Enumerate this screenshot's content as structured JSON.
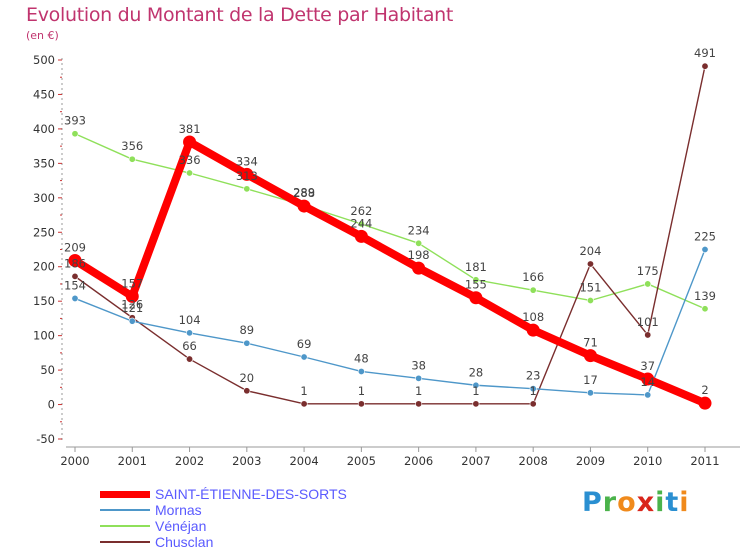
{
  "title": "Evolution du Montant de la Dette par Habitant",
  "unit": "(en €)",
  "logo": {
    "letters": [
      "P",
      "r",
      "o",
      "x",
      "i",
      "t",
      "i"
    ],
    "colors": [
      "#2a8fd1",
      "#4bb34b",
      "#f08a1c",
      "#d9261c",
      "#4bb34b",
      "#2a8fd1",
      "#f08a1c"
    ]
  },
  "chart_data": {
    "type": "line",
    "x": [
      "2000",
      "2001",
      "2002",
      "2003",
      "2004",
      "2005",
      "2006",
      "2007",
      "2008",
      "2009",
      "2010",
      "2011"
    ],
    "ylim": [
      -50,
      500
    ],
    "yticks": [
      "-50",
      "0",
      "50",
      "100",
      "150",
      "200",
      "250",
      "300",
      "350",
      "400",
      "450",
      "500"
    ],
    "grid": false,
    "legend_position": "bottom-left",
    "series": [
      {
        "name": "SAINT-ÉTIENNE-DES-SORTS",
        "color": "#ff0000",
        "values": [
          209,
          157,
          381,
          334,
          288,
          244,
          198,
          155,
          108,
          71,
          37,
          2
        ],
        "labels": [
          "209",
          "157",
          "381",
          "334",
          "288",
          "244",
          "198",
          "155",
          "108",
          "71",
          "37",
          "2"
        ]
      },
      {
        "name": "Mornas",
        "color": "#4e97c9",
        "values": [
          154,
          121,
          104,
          89,
          69,
          48,
          38,
          28,
          23,
          17,
          14,
          225
        ],
        "labels": [
          "154",
          "121",
          "104",
          "89",
          "69",
          "48",
          "38",
          "28",
          "23",
          "17",
          "14",
          "225"
        ]
      },
      {
        "name": "Vénéjan",
        "color": "#8fe05a",
        "values": [
          393,
          356,
          336,
          313,
          289,
          262,
          234,
          181,
          166,
          151,
          175,
          139
        ],
        "labels": [
          "393",
          "356",
          "336",
          "313",
          "289",
          "262",
          "234",
          "181",
          "166",
          "151",
          "175",
          "139"
        ]
      },
      {
        "name": "Chusclan",
        "color": "#7a2e2e",
        "values": [
          186,
          126,
          66,
          20,
          1,
          1,
          1,
          1,
          1,
          204,
          101,
          491
        ],
        "labels": [
          "186",
          "126",
          "66",
          "20",
          "1",
          "1",
          "1",
          "1",
          "1",
          "204",
          "101",
          "491"
        ]
      }
    ]
  }
}
